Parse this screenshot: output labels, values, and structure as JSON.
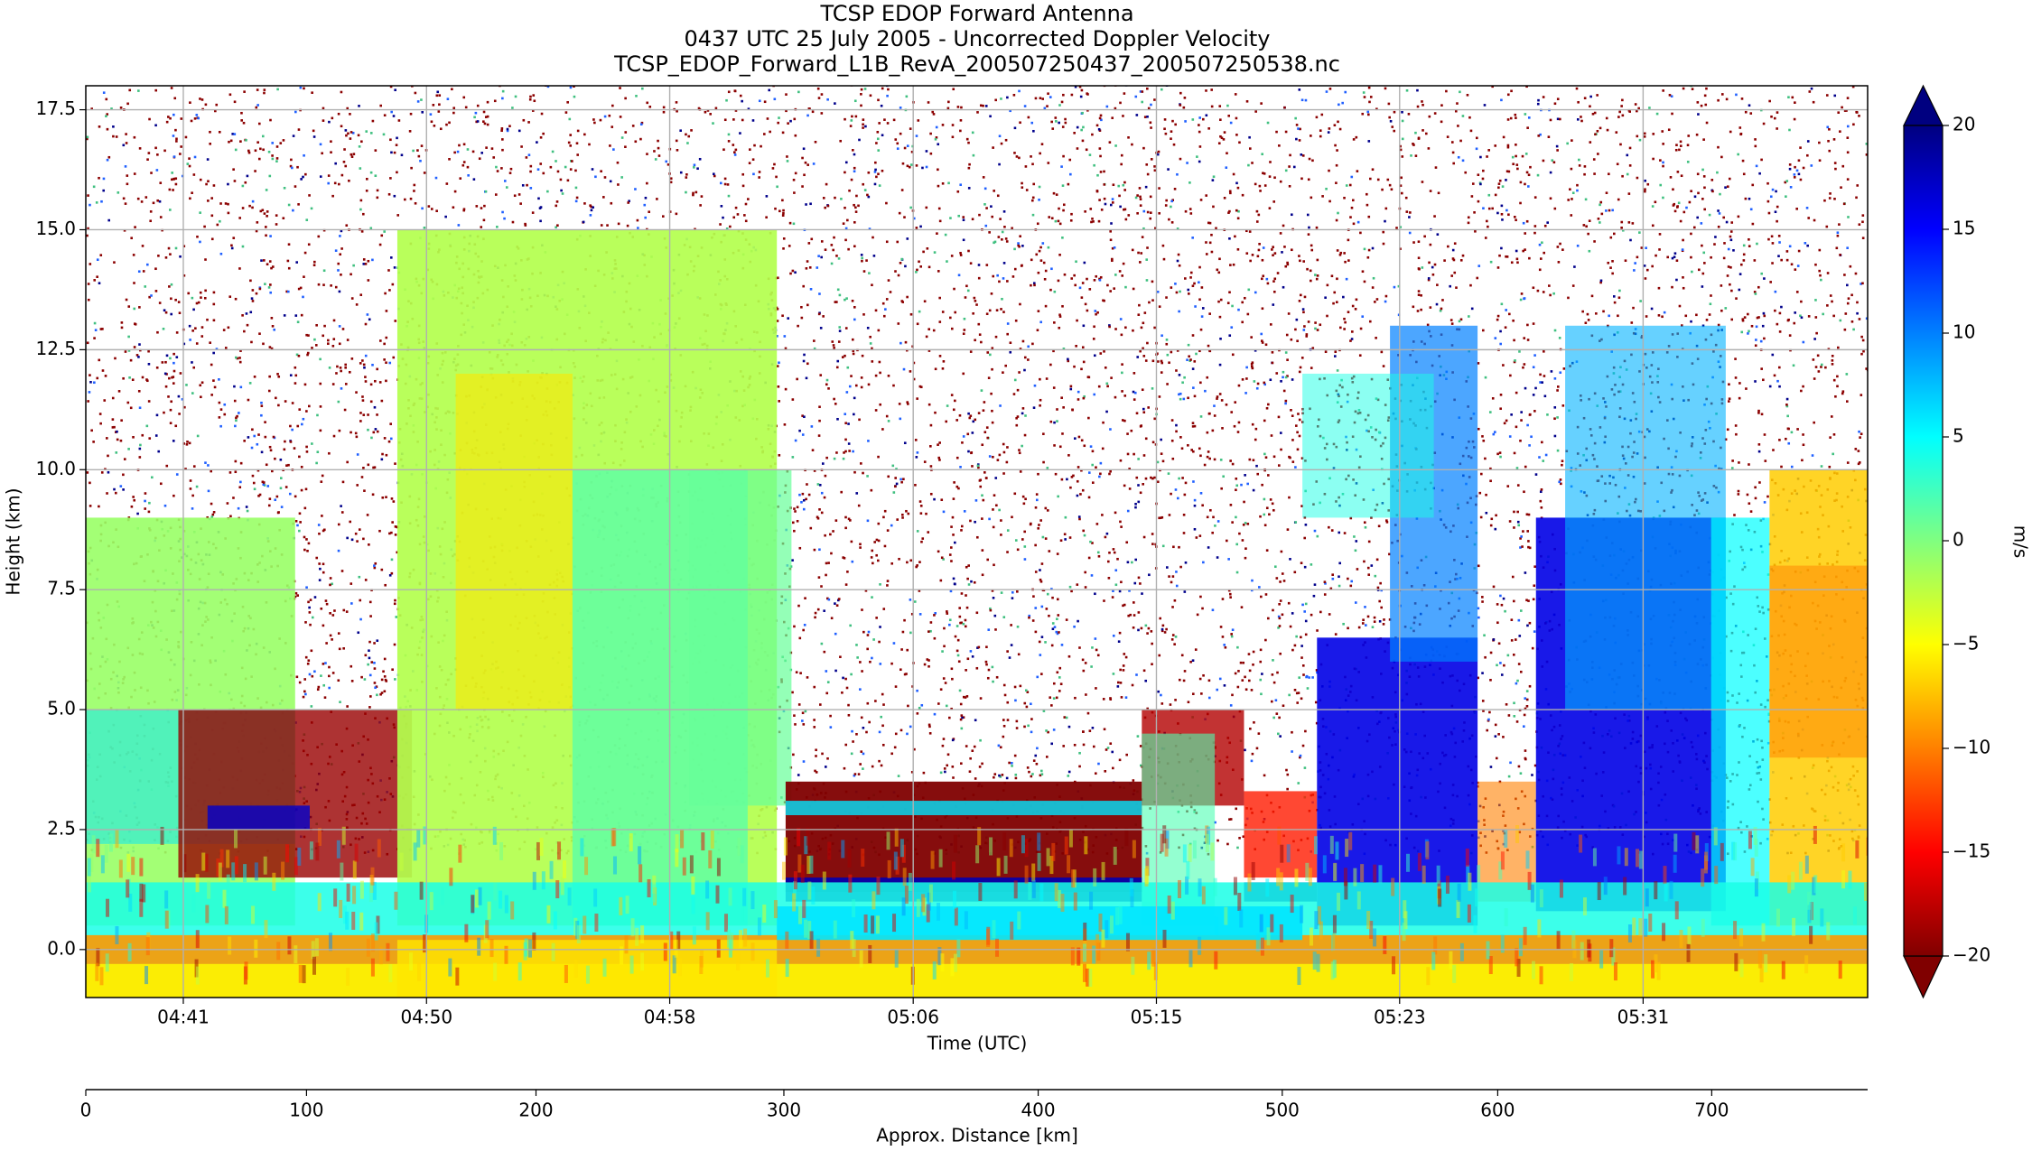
{
  "chart_data": {
    "type": "heatmap",
    "title": "TCSP EDOP Forward Antenna",
    "subtitle": "0437 UTC 25 July 2005 - Uncorrected Doppler Velocity",
    "subtitle2": "TCSP_EDOP_Forward_L1B_RevA_200507250437_200507250538.nc",
    "x_label": "Time (UTC)",
    "y_label": "Height (km)",
    "x2_label": "Approx. Distance [km]",
    "colorbar_label": "m/s",
    "xlim": [
      38.33,
      99.36
    ],
    "xticks": [
      {
        "value": 41.67,
        "label": "04:41"
      },
      {
        "value": 50,
        "label": "04:50"
      },
      {
        "value": 58.33,
        "label": "04:58"
      },
      {
        "value": 66.67,
        "label": "05:06"
      },
      {
        "value": 75,
        "label": "05:15"
      },
      {
        "value": 83.33,
        "label": "05:23"
      },
      {
        "value": 91.67,
        "label": "05:31"
      }
    ],
    "ylim": [
      -1,
      18
    ],
    "yticks": [
      {
        "value": 0,
        "label": "0.0"
      },
      2.5,
      {
        "value": 5,
        "label": "5.0"
      },
      7.5,
      {
        "value": 10,
        "label": "10.0"
      },
      12.5,
      {
        "value": 15,
        "label": "15.0"
      },
      17.5
    ],
    "x2ticks": [
      0,
      100,
      200,
      300,
      400,
      500,
      600,
      700
    ],
    "x2_tick_times": [
      38.33,
      45.89,
      53.75,
      62.24,
      70.95,
      79.31,
      86.69,
      94.02
    ],
    "clim": [
      -20,
      20
    ],
    "cticks": [
      {
        "value": -20,
        "label": "−20"
      },
      {
        "value": -15,
        "label": "−15"
      },
      {
        "value": -10,
        "label": "−10"
      },
      {
        "value": -5,
        "label": "−5"
      },
      0,
      5,
      10,
      15,
      20
    ],
    "colormap": [
      "#800000",
      "#ff0000",
      "#ff8000",
      "#ffff00",
      "#80ff80",
      "#00ffff",
      "#0080ff",
      "#0000ff",
      "#000080"
    ],
    "grid": true
  }
}
